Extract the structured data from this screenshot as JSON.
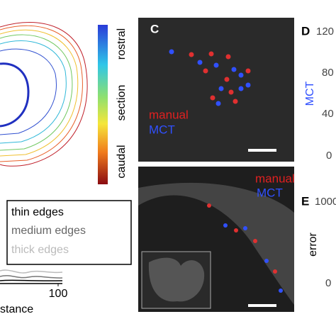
{
  "colorbar": {
    "top": "rostral",
    "middle": "section",
    "bottom": "caudal"
  },
  "panel_c": {
    "letter": "C",
    "legend": [
      "manual",
      "MCT"
    ]
  },
  "panel_lower": {
    "legend": [
      "manual",
      "MCT"
    ]
  },
  "panel_d": {
    "letter": "D",
    "ticks": [
      "120",
      "80",
      "40",
      "0"
    ],
    "axis_label": "MCT"
  },
  "panel_e": {
    "letter": "E",
    "ticks": [
      "1000",
      "0"
    ],
    "axis_label": "error"
  },
  "edge_legend": [
    "thin edges",
    "medium edges",
    "thick edges"
  ],
  "distance_axis": {
    "tick": "100",
    "label": "stance"
  }
}
